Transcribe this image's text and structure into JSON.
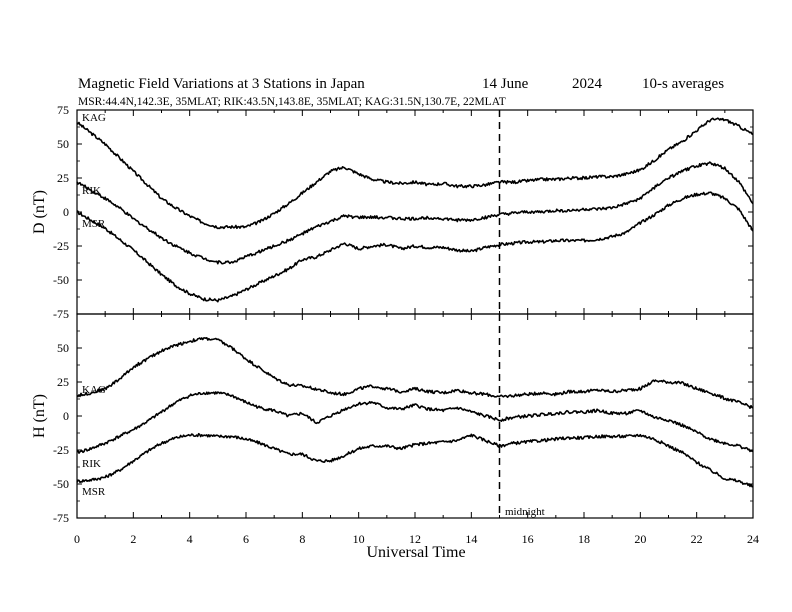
{
  "title": {
    "main": "Magnetic Field Variations at 3 Stations in Japan",
    "date": "14 June",
    "year": "2024",
    "note": "10-s averages",
    "subtitle": "MSR:44.4N,142.3E, 35MLAT;  RIK:43.5N,143.8E, 35MLAT;  KAG:31.5N,130.7E, 22MLAT"
  },
  "xlabel": "Universal Time",
  "annotation": "midnight",
  "chart_data": [
    {
      "type": "line",
      "ylabel": "D (nT)",
      "xlim": [
        0,
        24
      ],
      "ylim": [
        -75,
        75
      ],
      "yticks": [
        75,
        50,
        25,
        0,
        -25,
        -50,
        -75
      ],
      "xticks": [
        0,
        2,
        4,
        6,
        8,
        10,
        12,
        14,
        16,
        18,
        20,
        22,
        24
      ],
      "marker_x": 15,
      "series": [
        {
          "name": "KAG",
          "x": [
            0,
            0.5,
            1,
            1.5,
            2,
            2.5,
            3,
            3.5,
            4,
            4.5,
            5,
            5.5,
            6,
            6.5,
            7,
            7.5,
            8,
            8.5,
            9,
            9.5,
            10,
            10.5,
            11,
            11.5,
            12,
            12.5,
            13,
            13.5,
            14,
            14.5,
            15,
            15.5,
            16,
            16.5,
            17,
            17.5,
            18,
            18.5,
            19,
            19.5,
            20,
            20.5,
            21,
            21.5,
            22,
            22.5,
            23,
            23.5,
            24
          ],
          "y": [
            66,
            58,
            50,
            40,
            30,
            20,
            10,
            3,
            -3,
            -8,
            -11,
            -11,
            -11,
            -7,
            -1,
            6,
            14,
            22,
            30,
            33,
            28,
            24,
            22,
            21,
            22,
            20,
            21,
            19,
            19,
            20,
            22,
            22,
            23,
            24,
            24,
            25,
            25,
            26,
            26,
            28,
            31,
            38,
            46,
            52,
            60,
            68,
            68,
            63,
            57
          ]
        },
        {
          "name": "RIK",
          "x": [
            0,
            0.5,
            1,
            1.5,
            2,
            2.5,
            3,
            3.5,
            4,
            4.5,
            5,
            5.5,
            6,
            6.5,
            7,
            7.5,
            8,
            8.5,
            9,
            9.5,
            10,
            10.5,
            11,
            11.5,
            12,
            12.5,
            13,
            13.5,
            14,
            14.5,
            15,
            15.5,
            16,
            16.5,
            17,
            17.5,
            18,
            18.5,
            19,
            19.5,
            20,
            20.5,
            21,
            21.5,
            22,
            22.5,
            23,
            23.5,
            24
          ],
          "y": [
            22,
            16,
            10,
            3,
            -5,
            -12,
            -19,
            -25,
            -30,
            -34,
            -37,
            -37,
            -33,
            -29,
            -25,
            -21,
            -16,
            -11,
            -7,
            -3,
            -4,
            -4,
            -4,
            -5,
            -5,
            -4,
            -5,
            -6,
            -6,
            -4,
            -2,
            -1,
            0,
            0,
            1,
            1,
            2,
            2,
            3,
            6,
            10,
            18,
            25,
            30,
            34,
            36,
            32,
            22,
            6
          ]
        },
        {
          "name": "MSR",
          "x": [
            0,
            0.5,
            1,
            1.5,
            2,
            2.5,
            3,
            3.5,
            4,
            4.5,
            5,
            5.5,
            6,
            6.5,
            7,
            7.5,
            8,
            8.5,
            9,
            9.5,
            10,
            10.5,
            11,
            11.5,
            12,
            12.5,
            13,
            13.5,
            14,
            14.5,
            15,
            15.5,
            16,
            16.5,
            17,
            17.5,
            18,
            18.5,
            19,
            19.5,
            20,
            20.5,
            21,
            21.5,
            22,
            22.5,
            23,
            23.5,
            24
          ],
          "y": [
            0,
            -6,
            -12,
            -20,
            -28,
            -37,
            -46,
            -54,
            -60,
            -64,
            -65,
            -62,
            -57,
            -52,
            -47,
            -42,
            -35,
            -33,
            -28,
            -23,
            -27,
            -25,
            -24,
            -27,
            -25,
            -26,
            -26,
            -28,
            -29,
            -26,
            -24,
            -23,
            -22,
            -22,
            -21,
            -21,
            -21,
            -20,
            -18,
            -15,
            -8,
            -2,
            5,
            10,
            13,
            14,
            10,
            2,
            -14
          ]
        }
      ]
    },
    {
      "type": "line",
      "ylabel": "H (nT)",
      "xlim": [
        0,
        24
      ],
      "ylim": [
        -75,
        75
      ],
      "yticks": [
        75,
        50,
        25,
        0,
        -25,
        -50,
        -75
      ],
      "xticks": [
        0,
        2,
        4,
        6,
        8,
        10,
        12,
        14,
        16,
        18,
        20,
        22,
        24
      ],
      "marker_x": 15,
      "series": [
        {
          "name": "KAG",
          "x": [
            0,
            0.5,
            1,
            1.5,
            2,
            2.5,
            3,
            3.5,
            4,
            4.5,
            5,
            5.5,
            6,
            6.5,
            7,
            7.5,
            8,
            8.5,
            9,
            9.5,
            10,
            10.5,
            11,
            11.5,
            12,
            12.5,
            13,
            13.5,
            14,
            14.5,
            15,
            15.5,
            16,
            16.5,
            17,
            17.5,
            18,
            18.5,
            19,
            19.5,
            20,
            20.5,
            21,
            21.5,
            22,
            22.5,
            23,
            23.5,
            24
          ],
          "y": [
            15,
            17,
            20,
            27,
            36,
            42,
            48,
            52,
            55,
            57,
            56,
            50,
            42,
            35,
            28,
            23,
            22,
            20,
            17,
            16,
            20,
            22,
            20,
            18,
            20,
            18,
            17,
            19,
            17,
            16,
            14,
            15,
            16,
            17,
            16,
            18,
            18,
            19,
            18,
            19,
            20,
            26,
            25,
            24,
            20,
            17,
            13,
            10,
            6
          ]
        },
        {
          "name": "RIK",
          "x": [
            0,
            0.5,
            1,
            1.5,
            2,
            2.5,
            3,
            3.5,
            4,
            4.5,
            5,
            5.5,
            6,
            6.5,
            7,
            7.5,
            8,
            8.5,
            9,
            9.5,
            10,
            10.5,
            11,
            11.5,
            12,
            12.5,
            13,
            13.5,
            14,
            14.5,
            15,
            15.5,
            16,
            16.5,
            17,
            17.5,
            18,
            18.5,
            19,
            19.5,
            20,
            20.5,
            21,
            21.5,
            22,
            22.5,
            23,
            23.5,
            24
          ],
          "y": [
            -27,
            -24,
            -20,
            -15,
            -10,
            -4,
            3,
            10,
            15,
            17,
            17,
            15,
            10,
            6,
            4,
            0,
            2,
            -5,
            0,
            5,
            9,
            10,
            6,
            5,
            8,
            5,
            4,
            6,
            3,
            0,
            -3,
            -1,
            0,
            1,
            2,
            3,
            3,
            4,
            2,
            2,
            4,
            -1,
            -3,
            -7,
            -12,
            -17,
            -20,
            -22,
            -26
          ]
        },
        {
          "name": "MSR",
          "x": [
            0,
            0.5,
            1,
            1.5,
            2,
            2.5,
            3,
            3.5,
            4,
            4.5,
            5,
            5.5,
            6,
            6.5,
            7,
            7.5,
            8,
            8.5,
            9,
            9.5,
            10,
            10.5,
            11,
            11.5,
            12,
            12.5,
            13,
            13.5,
            14,
            14.5,
            15,
            15.5,
            16,
            16.5,
            17,
            17.5,
            18,
            18.5,
            19,
            19.5,
            20,
            20.5,
            21,
            21.5,
            22,
            22.5,
            23,
            23.5,
            24
          ],
          "y": [
            -48,
            -47,
            -45,
            -40,
            -33,
            -26,
            -20,
            -16,
            -14,
            -14,
            -15,
            -15,
            -17,
            -20,
            -24,
            -28,
            -28,
            -33,
            -33,
            -29,
            -24,
            -22,
            -22,
            -24,
            -21,
            -20,
            -19,
            -18,
            -14,
            -18,
            -22,
            -20,
            -19,
            -18,
            -17,
            -16,
            -16,
            -15,
            -15,
            -15,
            -14,
            -17,
            -22,
            -27,
            -34,
            -40,
            -46,
            -48,
            -52
          ]
        }
      ]
    }
  ]
}
